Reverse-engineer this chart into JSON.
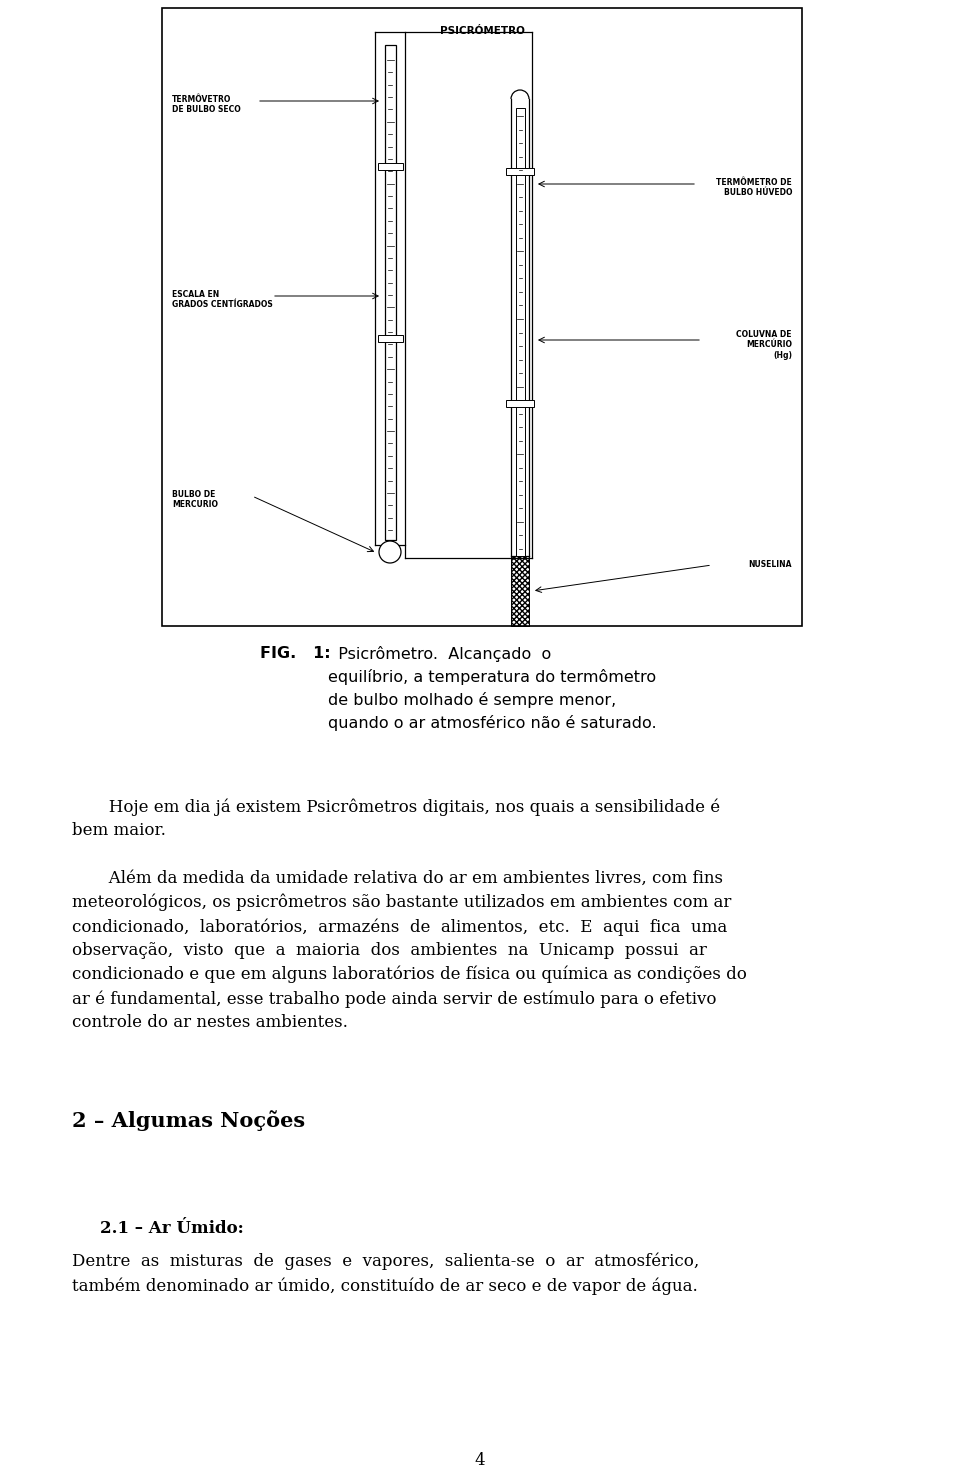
{
  "bg_color": "#ffffff",
  "diagram_title": "PSICRÓMETRO",
  "label_termometro_seco": "TERMÔVETRO\nDE BULBO SECO",
  "label_termometro_umido": "TERMÔMETRO DE\nBULBO HÚVEDO",
  "label_escala": "ESCALA EN\nGRADOS CENTÍGRADOS",
  "label_coluna": "COLUVNA DE\nMERCÚRIO\n(Hg)",
  "label_bulbo": "BULBO DE\nMERCURIO",
  "label_muselina": "NUSELINA",
  "fig_bold": "FIG.   1:",
  "fig_rest": "  Psicrômetro.  Alcançado  o\nequilíbrio, a temperatura do termômetro\nde bulbo molhado é sempre menor,\nquando o ar atmosférico não é saturado.",
  "para1": "       Hoje em dia já existem Psicrômetros digitais, nos quais a sensibilidade é\nbem maior.",
  "para2_line1": "       Além da medida da umidade relativa do ar em ambientes livres, com fins",
  "para2_line2": "meteorológicos, os psicrômetros são bastante utilizados em ambientes com ar",
  "para2_line3": "condicionado,  laboratórios,  armazéns  de  alimentos,  etc.  E  aqui  fica  uma",
  "para2_line4": "observação,  visto  que  a  maioria  dos  ambientes  na  Unicamp  possui  ar",
  "para2_line5": "condicionado e que em alguns laboratórios de física ou química as condições do",
  "para2_line6": "ar é fundamental, esse trabalho pode ainda servir de estímulo para o efetivo",
  "para2_line7": "controle do ar nestes ambientes.",
  "section_title": "2 – Algumas Noções",
  "subsection_title": "2.1 – Ar Úmido:",
  "para3_line1": "Dentre  as  misturas  de  gases  e  vapores,  salienta-se  o  ar  atmosférico,",
  "para3_line2": "também denominado ar úmido, constituído de ar seco e de vapor de água.",
  "page_number": "4",
  "body_fontsize": 12.0,
  "caption_fontsize": 11.5,
  "section_fontsize": 15.0,
  "subsection_fontsize": 12.0,
  "diagram_label_fontsize": 5.5,
  "diagram_title_fontsize": 7.5
}
